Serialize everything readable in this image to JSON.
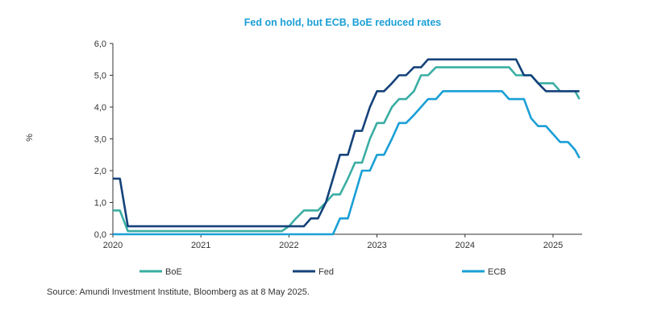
{
  "chart_data": {
    "type": "line",
    "title": "Fed on hold, but ECB, BoE reduced  rates",
    "ylabel": "%",
    "xlabel": "",
    "ylim": [
      0,
      6
    ],
    "xlim": [
      2020,
      2025.33
    ],
    "yticks": [
      "0,0",
      "1,0",
      "2,0",
      "3,0",
      "4,0",
      "5,0",
      "6,0"
    ],
    "ytick_values": [
      0,
      1,
      2,
      3,
      4,
      5,
      6
    ],
    "xticks": [
      "2020",
      "2021",
      "2022",
      "2023",
      "2024",
      "2025"
    ],
    "xtick_values": [
      2020,
      2021,
      2022,
      2023,
      2024,
      2025
    ],
    "grid": false,
    "legend_position": "bottom",
    "series": [
      {
        "name": "BoE",
        "color": "#3aaea3",
        "points": [
          [
            2020.0,
            0.75
          ],
          [
            2020.08,
            0.75
          ],
          [
            2020.17,
            0.1
          ],
          [
            2021.92,
            0.1
          ],
          [
            2022.0,
            0.25
          ],
          [
            2022.08,
            0.5
          ],
          [
            2022.17,
            0.75
          ],
          [
            2022.33,
            0.75
          ],
          [
            2022.42,
            1.0
          ],
          [
            2022.5,
            1.25
          ],
          [
            2022.58,
            1.25
          ],
          [
            2022.67,
            1.75
          ],
          [
            2022.75,
            2.25
          ],
          [
            2022.83,
            2.25
          ],
          [
            2022.92,
            3.0
          ],
          [
            2023.0,
            3.5
          ],
          [
            2023.08,
            3.5
          ],
          [
            2023.17,
            4.0
          ],
          [
            2023.25,
            4.25
          ],
          [
            2023.33,
            4.25
          ],
          [
            2023.42,
            4.5
          ],
          [
            2023.5,
            5.0
          ],
          [
            2023.58,
            5.0
          ],
          [
            2023.67,
            5.25
          ],
          [
            2024.5,
            5.25
          ],
          [
            2024.58,
            5.0
          ],
          [
            2024.75,
            5.0
          ],
          [
            2024.83,
            4.75
          ],
          [
            2025.0,
            4.75
          ],
          [
            2025.08,
            4.5
          ],
          [
            2025.25,
            4.5
          ],
          [
            2025.3,
            4.25
          ]
        ]
      },
      {
        "name": "Fed",
        "color": "#14427a",
        "points": [
          [
            2020.0,
            1.75
          ],
          [
            2020.08,
            1.75
          ],
          [
            2020.17,
            0.25
          ],
          [
            2022.17,
            0.25
          ],
          [
            2022.25,
            0.5
          ],
          [
            2022.33,
            0.5
          ],
          [
            2022.42,
            1.0
          ],
          [
            2022.5,
            1.75
          ],
          [
            2022.58,
            2.5
          ],
          [
            2022.67,
            2.5
          ],
          [
            2022.75,
            3.25
          ],
          [
            2022.83,
            3.25
          ],
          [
            2022.92,
            4.0
          ],
          [
            2023.0,
            4.5
          ],
          [
            2023.08,
            4.5
          ],
          [
            2023.17,
            4.75
          ],
          [
            2023.25,
            5.0
          ],
          [
            2023.33,
            5.0
          ],
          [
            2023.42,
            5.25
          ],
          [
            2023.5,
            5.25
          ],
          [
            2023.58,
            5.5
          ],
          [
            2024.58,
            5.5
          ],
          [
            2024.67,
            5.0
          ],
          [
            2024.75,
            5.0
          ],
          [
            2024.83,
            4.75
          ],
          [
            2024.92,
            4.5
          ],
          [
            2025.3,
            4.5
          ]
        ]
      },
      {
        "name": "ECB",
        "color": "#1a9fd6",
        "points": [
          [
            2020.0,
            0.0
          ],
          [
            2022.42,
            0.0
          ],
          [
            2022.5,
            0.0
          ],
          [
            2022.58,
            0.5
          ],
          [
            2022.67,
            0.5
          ],
          [
            2022.75,
            1.25
          ],
          [
            2022.83,
            2.0
          ],
          [
            2022.92,
            2.0
          ],
          [
            2023.0,
            2.5
          ],
          [
            2023.08,
            2.5
          ],
          [
            2023.17,
            3.0
          ],
          [
            2023.25,
            3.5
          ],
          [
            2023.33,
            3.5
          ],
          [
            2023.42,
            3.75
          ],
          [
            2023.5,
            4.0
          ],
          [
            2023.58,
            4.25
          ],
          [
            2023.67,
            4.25
          ],
          [
            2023.75,
            4.5
          ],
          [
            2024.42,
            4.5
          ],
          [
            2024.5,
            4.25
          ],
          [
            2024.67,
            4.25
          ],
          [
            2024.75,
            3.65
          ],
          [
            2024.83,
            3.4
          ],
          [
            2024.92,
            3.4
          ],
          [
            2025.0,
            3.15
          ],
          [
            2025.08,
            2.9
          ],
          [
            2025.17,
            2.9
          ],
          [
            2025.25,
            2.65
          ],
          [
            2025.3,
            2.4
          ]
        ]
      }
    ]
  },
  "source": "Source: Amundi Investment Institute, Bloomberg as at 8 May 2025.",
  "colors": {
    "title": "#1a9fd6",
    "axis": "#333333"
  }
}
